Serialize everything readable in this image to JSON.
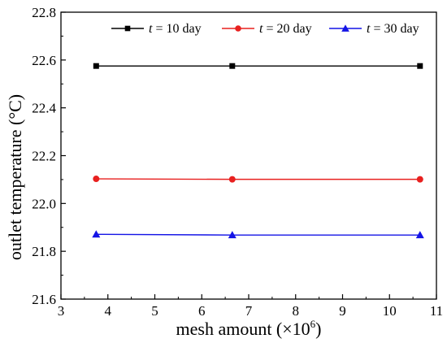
{
  "chart_data": {
    "type": "line",
    "x": [
      3.75,
      6.65,
      10.65
    ],
    "series": [
      {
        "name": "t = 10 day",
        "name_var": "t",
        "name_rest": " = 10 day",
        "color": "#000000",
        "marker": "square",
        "values": [
          22.575,
          22.575,
          22.575
        ]
      },
      {
        "name": "t = 20 day",
        "name_var": "t",
        "name_rest": " = 20 day",
        "color": "#e8201f",
        "marker": "circle",
        "values": [
          22.103,
          22.101,
          22.101
        ]
      },
      {
        "name": "t = 30 day",
        "name_var": "t",
        "name_rest": " = 30 day",
        "color": "#1414e6",
        "marker": "triangle",
        "values": [
          21.871,
          21.868,
          21.868
        ]
      }
    ],
    "xlabel": "mesh amount (×10⁶)",
    "xlabel_main": "mesh amount (×10",
    "xlabel_sup": "6",
    "xlabel_end": ")",
    "ylabel": "outlet temperature (°C)",
    "xlim": [
      3,
      11
    ],
    "ylim": [
      21.6,
      22.8
    ],
    "xticks": [
      "3",
      "4",
      "5",
      "6",
      "7",
      "8",
      "9",
      "10",
      "11"
    ],
    "yticks": [
      "21.6",
      "21.8",
      "22.0",
      "22.2",
      "22.4",
      "22.6",
      "22.8"
    ],
    "grid": false,
    "legend_position": "top"
  }
}
